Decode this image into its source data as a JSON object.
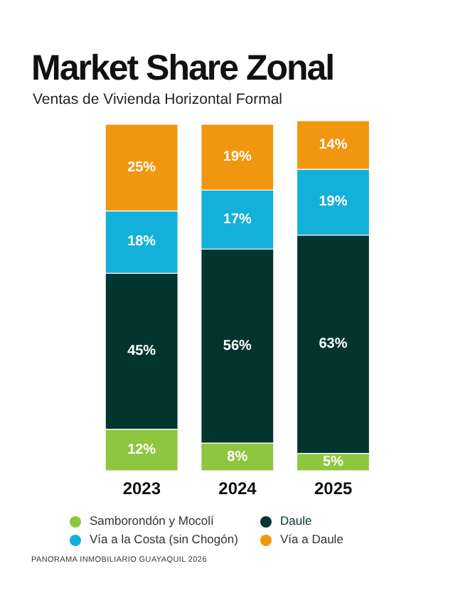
{
  "chart_data": {
    "type": "bar",
    "title": "Market Share Zonal",
    "subtitle": "Ventas de Vivienda Horizontal Formal",
    "categories": [
      "2023",
      "2024",
      "2025"
    ],
    "stacked": true,
    "legend": "bottom",
    "grid": false,
    "series": [
      {
        "name": "Samborondón y Mocolí",
        "color": "#8dc63f",
        "values": [
          12,
          8,
          5
        ],
        "value_labels": [
          "12%",
          "8%",
          "5%"
        ]
      },
      {
        "name": "Daule",
        "color": "#033530",
        "values": [
          45,
          56,
          63
        ],
        "value_labels": [
          "45%",
          "56%",
          "63%"
        ]
      },
      {
        "name": "Vía a la Costa (sin Chogón)",
        "color": "#13b1d9",
        "values": [
          18,
          17,
          19
        ],
        "value_labels": [
          "18%",
          "17%",
          "19%"
        ]
      },
      {
        "name": "Vía a Daule",
        "color": "#f0960f",
        "values": [
          25,
          19,
          14
        ],
        "value_labels": [
          "25%",
          "19%",
          "14%"
        ]
      }
    ],
    "annotations": [
      "PANORAMA INMOBILIARIO GUAYAQUIL 2026"
    ]
  }
}
